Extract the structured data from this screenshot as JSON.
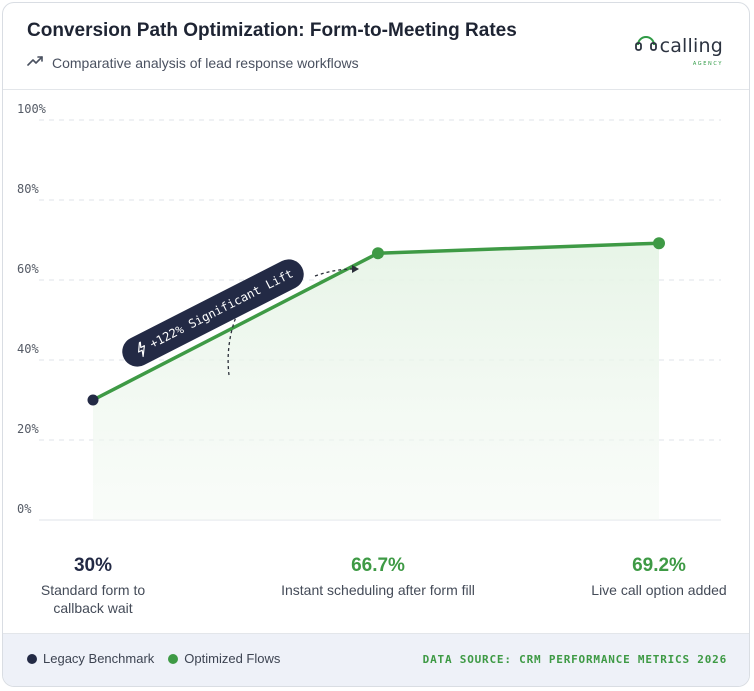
{
  "header": {
    "title": "Conversion Path Optimization: Form-to-Meeting Rates",
    "subtitle": "Comparative analysis of lead response workflows",
    "subtitle_icon": "trending-up-icon",
    "logo_word": "calling",
    "logo_sub": "AGENCY"
  },
  "colors": {
    "legacy": "#232a45",
    "optimized": "#3e9a45",
    "area": "#eaf5ea",
    "grid": "#dfe3e8"
  },
  "chart_data": {
    "type": "line",
    "title": "Conversion Path Optimization: Form-to-Meeting Rates",
    "subtitle": "Comparative analysis of lead response workflows",
    "categories": [
      "Standard form to callback wait",
      "Instant scheduling after form fill",
      "Live call option added"
    ],
    "values": [
      30,
      66.7,
      69.2
    ],
    "value_labels": [
      "30%",
      "66.7%",
      "69.2%"
    ],
    "point_series": [
      "Legacy Benchmark",
      "Optimized Flows",
      "Optimized Flows"
    ],
    "ylim": [
      0,
      100
    ],
    "yticks": [
      {
        "value": 0,
        "label": "0%"
      },
      {
        "value": 20,
        "label": "20%"
      },
      {
        "value": 40,
        "label": "40%"
      },
      {
        "value": 60,
        "label": "60%"
      },
      {
        "value": 80,
        "label": "80%"
      },
      {
        "value": 100,
        "label": "100%"
      }
    ],
    "grid": true,
    "area_fill": true,
    "annotation": "+122% Significant Lift",
    "legend": {
      "placement": "bottom-left",
      "items": [
        {
          "name": "Legacy Benchmark",
          "color": "#232a45"
        },
        {
          "name": "Optimized Flows",
          "color": "#3e9a45"
        }
      ]
    },
    "source": "DATA SOURCE: CRM PERFORMANCE METRICS 2026"
  }
}
